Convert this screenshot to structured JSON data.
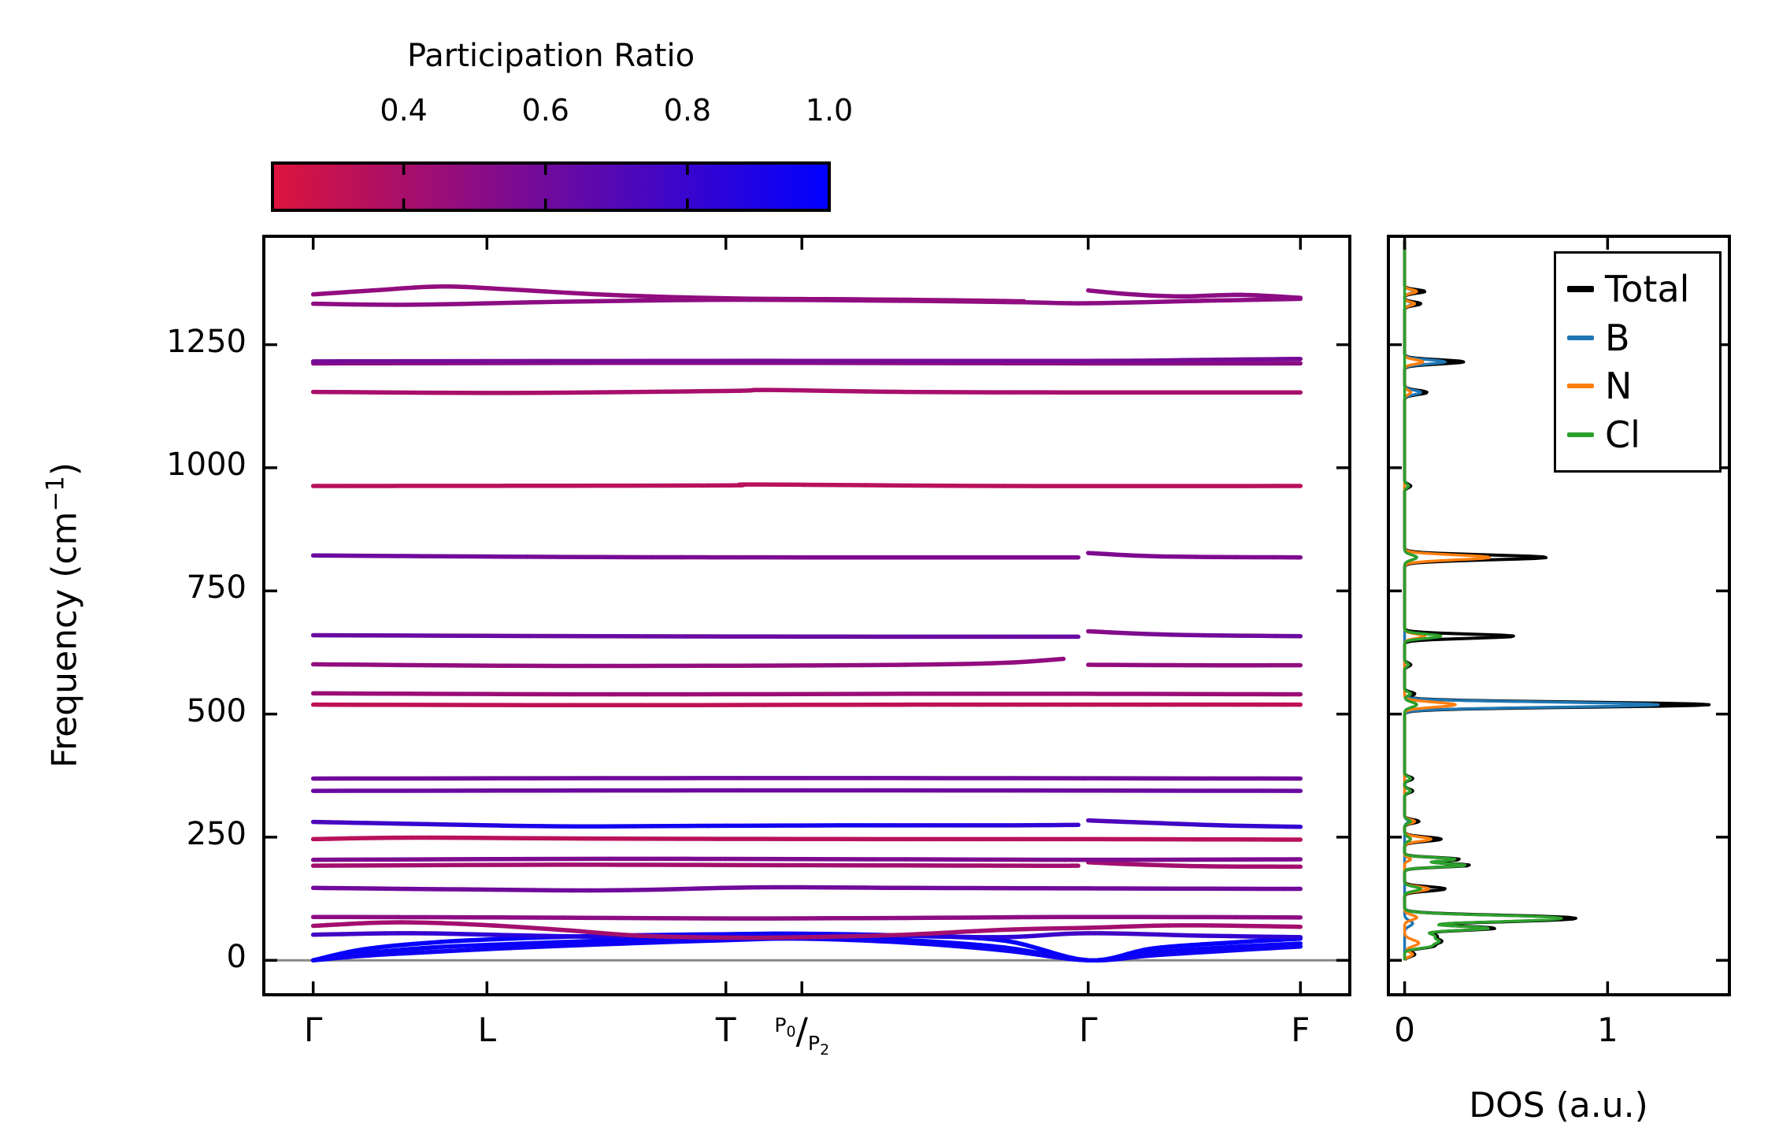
{
  "figure": {
    "colorbar_title": "Participation Ratio",
    "ylabel_pre": "Frequency (cm",
    "ylabel_sup": "−1",
    "ylabel_post": ")",
    "dos_xlabel": "DOS (a.u.)"
  },
  "chart_data": {
    "type": "line",
    "title": "",
    "colorbar": {
      "title": "Participation Ratio",
      "orientation": "horizontal",
      "vmin": 0.215,
      "vmax": 1.0,
      "ticks": [
        0.4,
        0.6,
        0.8,
        1.0
      ],
      "tick_labels": [
        "0.4",
        "0.6",
        "0.8",
        "1.0"
      ],
      "cmap_start": "#dc143c",
      "cmap_end": "#0000ff"
    },
    "band_panel": {
      "ylabel": "Frequency (cm⁻¹)",
      "ylim": [
        -70,
        1470
      ],
      "yticks": [
        0,
        250,
        500,
        750,
        1000,
        1250
      ],
      "ytick_labels": [
        "0",
        "250",
        "500",
        "750",
        "1000",
        "1250"
      ],
      "xlim": [
        -0.05,
        1.05
      ],
      "zero_line_freq": 0,
      "zero_line_color": "#888888",
      "kpoints": [
        {
          "label": "Γ",
          "k": 0
        },
        {
          "label": "L",
          "k": 0.176
        },
        {
          "label": "T",
          "k": 0.418
        },
        {
          "label": "P0/P2",
          "k": 0.495,
          "frac_top_base": "P",
          "frac_top_sub": "0",
          "frac_slash": "/",
          "frac_bot_base": "P",
          "frac_bot_sub": "2"
        },
        {
          "label": "Γ",
          "k": 0.785
        },
        {
          "label": "F",
          "k": 1.0
        }
      ],
      "bands": [
        {
          "name": "acoustic-1",
          "k": [
            0,
            0.05,
            0.12,
            0.2,
            0.3,
            0.42,
            0.495,
            0.6,
            0.7,
            0.785,
            0.85,
            0.93,
            1
          ],
          "f": [
            0,
            14,
            26,
            33,
            40,
            44,
            46,
            41,
            26,
            0,
            16,
            27,
            34
          ],
          "pr": 0.97
        },
        {
          "name": "acoustic-2",
          "k": [
            0,
            0.05,
            0.12,
            0.2,
            0.3,
            0.42,
            0.495,
            0.6,
            0.7,
            0.785,
            0.85,
            0.93,
            1
          ],
          "f": [
            0,
            22,
            36,
            44,
            50,
            53,
            54,
            50,
            40,
            0,
            24,
            36,
            44
          ],
          "pr": 0.98
        },
        {
          "name": "acoustic-3",
          "k": [
            0,
            0.05,
            0.12,
            0.2,
            0.3,
            0.42,
            0.495,
            0.6,
            0.7,
            0.785,
            0.85,
            0.93,
            1
          ],
          "f": [
            0,
            9,
            17,
            25,
            33,
            41,
            44,
            36,
            20,
            0,
            10,
            20,
            28
          ],
          "pr": 0.95
        },
        {
          "name": "optical-52",
          "k": [
            0,
            0.1,
            0.2,
            0.3,
            0.42,
            0.5,
            0.6,
            0.7,
            0.785,
            0.9,
            1
          ],
          "f": [
            52,
            55,
            51,
            48,
            52,
            53,
            50,
            47,
            55,
            50,
            47
          ],
          "pr": [
            0.75,
            0.8,
            0.85,
            0.9,
            0.95,
            0.95,
            0.9,
            0.85,
            0.75,
            0.8,
            0.85
          ]
        },
        {
          "name": "optical-70",
          "k": [
            0,
            0.08,
            0.16,
            0.25,
            0.33,
            0.42,
            0.5,
            0.6,
            0.7,
            0.785,
            0.88,
            1
          ],
          "f": [
            70,
            77,
            73,
            62,
            50,
            46,
            47,
            52,
            62,
            66,
            71,
            68
          ],
          "pr": 0.42
        },
        {
          "name": "optical-87",
          "k": [
            0,
            0.2,
            0.42,
            0.6,
            0.785,
            1
          ],
          "f": [
            88,
            87,
            85,
            86,
            88,
            87
          ],
          "pr": 0.5
        },
        {
          "name": "optical-148",
          "k": [
            0,
            0.15,
            0.3,
            0.45,
            0.6,
            0.785,
            1
          ],
          "f": [
            147,
            144,
            142,
            148,
            147,
            146,
            145
          ],
          "pr": 0.6
        },
        {
          "name": "optical-192-left",
          "k": [
            0,
            0.25,
            0.5,
            0.72,
            0.775
          ],
          "f": [
            192,
            194,
            193,
            192,
            192
          ],
          "pr": 0.42
        },
        {
          "name": "optical-192-right",
          "k": [
            0.785,
            0.83,
            0.9,
            1
          ],
          "f": [
            199,
            195,
            191,
            190
          ],
          "pr": 0.42
        },
        {
          "name": "optical-205",
          "k": [
            0,
            0.3,
            0.6,
            0.785,
            1
          ],
          "f": [
            204,
            206,
            205,
            204,
            205
          ],
          "pr": 0.55
        },
        {
          "name": "optical-246",
          "k": [
            0,
            0.1,
            0.3,
            0.6,
            0.785,
            1
          ],
          "f": [
            246,
            249,
            247,
            246,
            246,
            245
          ],
          "pr": 0.34
        },
        {
          "name": "optical-276-left",
          "k": [
            0,
            0.1,
            0.25,
            0.4,
            0.55,
            0.7,
            0.775
          ],
          "f": [
            281,
            277,
            272,
            273,
            274,
            274,
            275
          ],
          "pr": [
            0.72,
            0.8,
            0.93,
            0.95,
            0.93,
            0.85,
            0.8
          ]
        },
        {
          "name": "optical-276-right",
          "k": [
            0.785,
            0.85,
            0.92,
            1
          ],
          "f": [
            284,
            279,
            274,
            271
          ],
          "pr": [
            0.7,
            0.75,
            0.8,
            0.82
          ]
        },
        {
          "name": "optical-344",
          "k": [
            0,
            0.5,
            1
          ],
          "f": [
            344,
            345,
            344
          ],
          "pr": 0.62
        },
        {
          "name": "optical-369",
          "k": [
            0,
            0.5,
            1
          ],
          "f": [
            369,
            370,
            369
          ],
          "pr": 0.6
        },
        {
          "name": "optical-519",
          "k": [
            0,
            0.3,
            0.6,
            0.785,
            1
          ],
          "f": [
            519,
            518,
            519,
            519,
            519
          ],
          "pr": 0.32
        },
        {
          "name": "optical-541",
          "k": [
            0,
            0.3,
            0.6,
            0.785,
            1
          ],
          "f": [
            542,
            540,
            541,
            541,
            540
          ],
          "pr": 0.45
        },
        {
          "name": "optical-600-left",
          "k": [
            0,
            0.2,
            0.4,
            0.6,
            0.7,
            0.76
          ],
          "f": [
            601,
            598,
            598,
            600,
            604,
            612
          ],
          "pr": 0.48
        },
        {
          "name": "optical-600-right",
          "k": [
            0.785,
            0.9,
            1
          ],
          "f": [
            600,
            599,
            599
          ],
          "pr": 0.48
        },
        {
          "name": "optical-658-left",
          "k": [
            0,
            0.3,
            0.6,
            0.775
          ],
          "f": [
            660,
            658,
            657,
            657
          ],
          "pr": 0.62
        },
        {
          "name": "optical-658-right",
          "k": [
            0.785,
            0.87,
            1
          ],
          "f": [
            668,
            661,
            658
          ],
          "pr": [
            0.5,
            0.58,
            0.62
          ]
        },
        {
          "name": "optical-818-left",
          "k": [
            0,
            0.25,
            0.5,
            0.775
          ],
          "f": [
            822,
            819,
            818,
            818
          ],
          "pr": [
            0.62,
            0.58,
            0.55,
            0.55
          ]
        },
        {
          "name": "optical-818-right",
          "k": [
            0.785,
            0.86,
            1
          ],
          "f": [
            827,
            820,
            818
          ],
          "pr": 0.55
        },
        {
          "name": "optical-963",
          "k": [
            0,
            0.4,
            0.45,
            0.7,
            1
          ],
          "f": [
            963,
            964,
            966,
            963,
            963
          ],
          "pr": 0.34
        },
        {
          "name": "optical-1153",
          "k": [
            0,
            0.2,
            0.42,
            0.46,
            0.6,
            0.785,
            1
          ],
          "f": [
            1154,
            1152,
            1156,
            1158,
            1154,
            1153,
            1153
          ],
          "pr": 0.4
        },
        {
          "name": "optical-1212",
          "k": [
            0,
            0.4,
            0.785,
            1
          ],
          "f": [
            1212,
            1213,
            1212,
            1212
          ],
          "pr": 0.5
        },
        {
          "name": "optical-1217",
          "k": [
            0,
            0.4,
            0.785,
            0.9,
            1
          ],
          "f": [
            1216,
            1217,
            1217,
            1219,
            1221
          ],
          "pr": 0.58
        },
        {
          "name": "optical-1333",
          "k": [
            0,
            0.1,
            0.25,
            0.42,
            0.6,
            0.72,
            0.785,
            0.9,
            1
          ],
          "f": [
            1333,
            1331,
            1337,
            1341,
            1339,
            1336,
            1334,
            1339,
            1343
          ],
          "pr": 0.5
        },
        {
          "name": "optical-1355-left",
          "k": [
            0,
            0.06,
            0.13,
            0.2,
            0.3,
            0.42,
            0.55,
            0.65,
            0.72
          ],
          "f": [
            1352,
            1360,
            1368,
            1362,
            1351,
            1344,
            1342,
            1340,
            1338
          ],
          "pr": 0.48
        },
        {
          "name": "optical-1355-right",
          "k": [
            0.785,
            0.83,
            0.88,
            0.94,
            1
          ],
          "f": [
            1360,
            1352,
            1348,
            1351,
            1345
          ],
          "pr": 0.5
        }
      ]
    },
    "dos_panel": {
      "xlabel": "DOS (a.u.)",
      "xlim": [
        -0.08,
        1.6
      ],
      "xticks": [
        0,
        1
      ],
      "xtick_labels": [
        "0",
        "1"
      ],
      "legend_entries": [
        "Total",
        "B",
        "N",
        "Cl"
      ],
      "series": [
        {
          "name": "Total",
          "color": "#000000",
          "peaks": [
            [
              12,
              0.05,
              6
            ],
            [
              28,
              0.12,
              6
            ],
            [
              38,
              0.16,
              7
            ],
            [
              50,
              0.15,
              8
            ],
            [
              65,
              0.44,
              6
            ],
            [
              80,
              0.36,
              6
            ],
            [
              87,
              0.72,
              7
            ],
            [
              145,
              0.2,
              6
            ],
            [
              193,
              0.32,
              5
            ],
            [
              205,
              0.27,
              5
            ],
            [
              246,
              0.18,
              6
            ],
            [
              282,
              0.07,
              5
            ],
            [
              344,
              0.04,
              5
            ],
            [
              369,
              0.04,
              5
            ],
            [
              519,
              1.5,
              7
            ],
            [
              541,
              0.05,
              5
            ],
            [
              600,
              0.03,
              5
            ],
            [
              658,
              0.54,
              6
            ],
            [
              818,
              0.7,
              7
            ],
            [
              963,
              0.03,
              5
            ],
            [
              1153,
              0.11,
              6
            ],
            [
              1215,
              0.29,
              6
            ],
            [
              1333,
              0.08,
              5
            ],
            [
              1358,
              0.1,
              5
            ]
          ]
        },
        {
          "name": "B",
          "color": "#1f77b4",
          "peaks": [
            [
              75,
              0.04,
              8
            ],
            [
              282,
              0.02,
              5
            ],
            [
              519,
              1.25,
              7
            ],
            [
              818,
              0.06,
              7
            ],
            [
              1153,
              0.08,
              6
            ],
            [
              1215,
              0.2,
              6
            ],
            [
              1333,
              0.04,
              5
            ],
            [
              1358,
              0.05,
              5
            ]
          ]
        },
        {
          "name": "N",
          "color": "#ff7f0e",
          "peaks": [
            [
              12,
              0.04,
              6
            ],
            [
              35,
              0.07,
              9
            ],
            [
              87,
              0.06,
              7
            ],
            [
              145,
              0.12,
              6
            ],
            [
              205,
              0.03,
              5
            ],
            [
              246,
              0.13,
              6
            ],
            [
              282,
              0.05,
              5
            ],
            [
              519,
              0.25,
              7
            ],
            [
              658,
              0.1,
              6
            ],
            [
              818,
              0.42,
              7
            ],
            [
              1153,
              0.03,
              6
            ],
            [
              1215,
              0.09,
              6
            ],
            [
              1333,
              0.05,
              5
            ],
            [
              1358,
              0.06,
              5
            ]
          ]
        },
        {
          "name": "Cl",
          "color": "#2ca02c",
          "peaks": [
            [
              28,
              0.11,
              6
            ],
            [
              38,
              0.15,
              7
            ],
            [
              50,
              0.14,
              8
            ],
            [
              65,
              0.41,
              6
            ],
            [
              80,
              0.33,
              6
            ],
            [
              87,
              0.66,
              7
            ],
            [
              145,
              0.08,
              6
            ],
            [
              193,
              0.3,
              5
            ],
            [
              205,
              0.25,
              5
            ],
            [
              246,
              0.03,
              6
            ],
            [
              282,
              0.03,
              5
            ],
            [
              344,
              0.03,
              5
            ],
            [
              369,
              0.03,
              5
            ],
            [
              519,
              0.06,
              7
            ],
            [
              541,
              0.03,
              5
            ],
            [
              600,
              0.02,
              5
            ],
            [
              658,
              0.18,
              6
            ],
            [
              818,
              0.06,
              7
            ],
            [
              963,
              0.02,
              5
            ]
          ]
        }
      ]
    }
  }
}
